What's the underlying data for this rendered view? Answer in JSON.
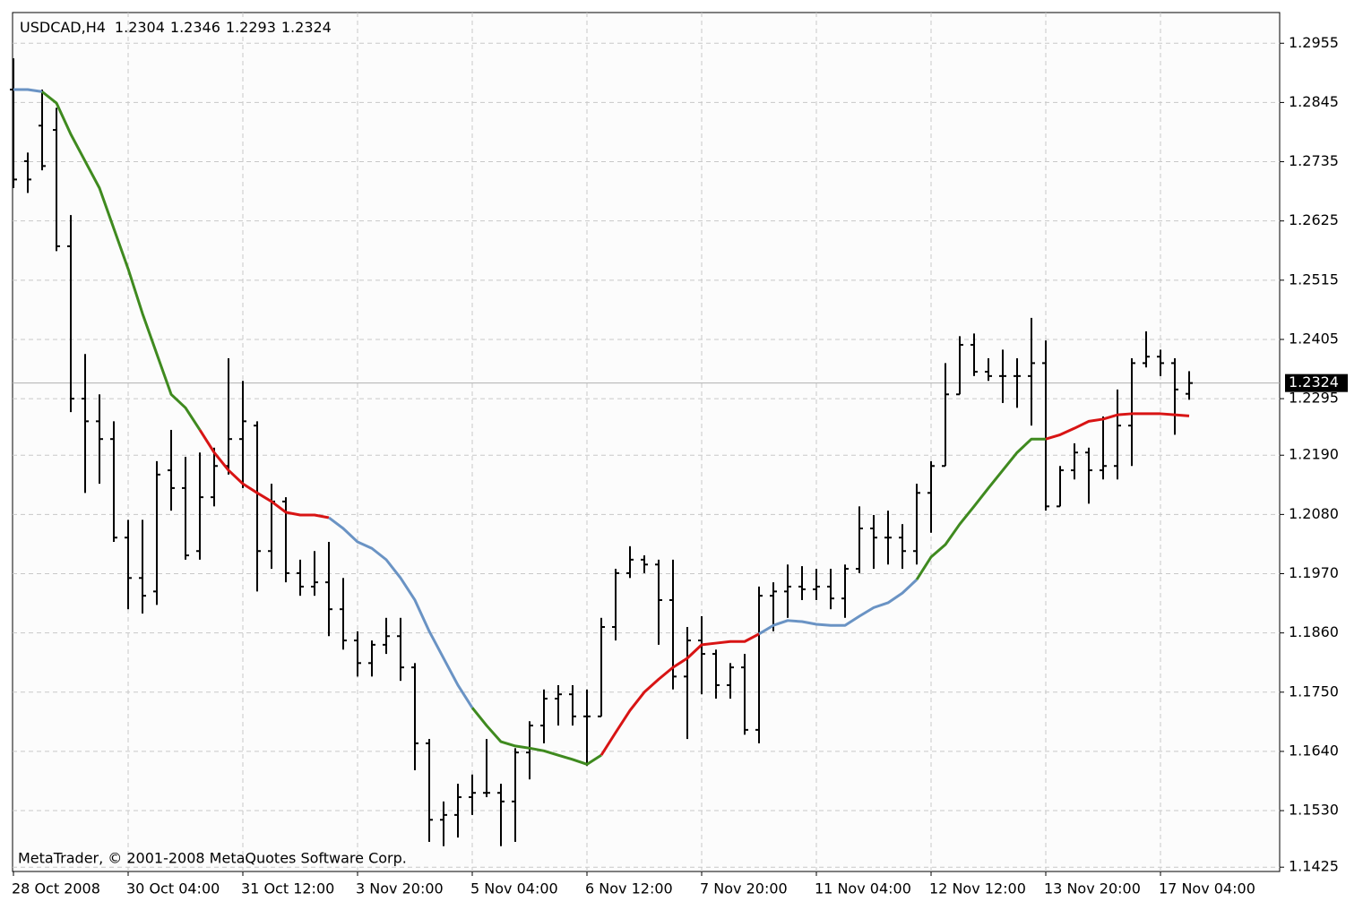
{
  "chart_data": {
    "type": "ohlc",
    "symbol": "USDCAD,H4",
    "copyright": "MetaTrader, © 2001-2008 MetaQuotes Software Corp.",
    "ylim": [
      1.1417,
      1.3012
    ],
    "yticks": [
      1.2955,
      1.2845,
      1.2735,
      1.2625,
      1.2515,
      1.2405,
      1.2295,
      {
        "value": 1.219,
        "label": "1.2190"
      },
      {
        "value": 1.208,
        "label": "1.2080"
      },
      {
        "value": 1.197,
        "label": "1.1970"
      },
      {
        "value": 1.186,
        "label": "1.1860"
      },
      {
        "value": 1.175,
        "label": "1.1750"
      },
      {
        "value": 1.164,
        "label": "1.1640"
      },
      {
        "value": 1.153,
        "label": "1.1530"
      },
      1.1425
    ],
    "grid": true,
    "bar_color": "#000000",
    "categories": [
      "28 Oct 2008",
      null,
      null,
      null,
      null,
      null,
      null,
      null,
      "30 Oct 04:00",
      null,
      null,
      null,
      null,
      null,
      null,
      null,
      "31 Oct 12:00",
      null,
      null,
      null,
      null,
      null,
      null,
      null,
      "3 Nov 20:00",
      null,
      null,
      null,
      null,
      null,
      null,
      null,
      "5 Nov 04:00",
      null,
      null,
      null,
      null,
      null,
      null,
      null,
      "6 Nov 12:00",
      null,
      null,
      null,
      null,
      null,
      null,
      null,
      "7 Nov 20:00",
      null,
      null,
      null,
      null,
      null,
      null,
      null,
      "11 Nov 04:00",
      null,
      null,
      null,
      null,
      null,
      null,
      null,
      "12 Nov 12:00",
      null,
      null,
      null,
      null,
      null,
      null,
      null,
      "13 Nov 20:00",
      null,
      null,
      null,
      null,
      null,
      null,
      null,
      "17 Nov 04:00",
      null,
      null
    ],
    "bars": [
      [
        1.2869,
        1.2927,
        1.2686,
        1.2702
      ],
      [
        1.2736,
        1.2752,
        1.2677,
        1.2702
      ],
      [
        1.2802,
        1.2869,
        1.2719,
        1.2727
      ],
      [
        1.2794,
        1.2835,
        1.2569,
        1.2578
      ],
      [
        1.2578,
        1.2636,
        1.227,
        1.2295
      ],
      [
        1.2295,
        1.2378,
        1.212,
        1.2253
      ],
      [
        1.2253,
        1.2303,
        1.2137,
        1.222
      ],
      [
        1.222,
        1.2253,
        1.2029,
        1.2037
      ],
      [
        1.2037,
        1.207,
        1.1904,
        1.1962
      ],
      [
        1.1962,
        1.207,
        1.1896,
        1.1929
      ],
      [
        1.1937,
        1.2179,
        1.1912,
        1.2154
      ],
      [
        1.2162,
        1.2237,
        1.2087,
        1.2129
      ],
      [
        1.2129,
        1.2187,
        1.1996,
        1.2004
      ],
      [
        1.2012,
        1.2195,
        1.1996,
        1.2112
      ],
      [
        1.2112,
        1.2204,
        1.2095,
        1.217
      ],
      [
        1.217,
        1.237,
        1.2154,
        1.222
      ],
      [
        1.222,
        1.2328,
        1.2129,
        1.2253
      ],
      [
        1.2245,
        1.2253,
        1.1937,
        1.2012
      ],
      [
        1.2012,
        1.2137,
        1.1979,
        1.2104
      ],
      [
        1.2104,
        1.2112,
        1.1954,
        1.1971
      ],
      [
        1.1971,
        1.1996,
        1.1929,
        1.1946
      ],
      [
        1.1946,
        1.2012,
        1.1929,
        1.1954
      ],
      [
        1.1954,
        1.2029,
        1.1854,
        1.1904
      ],
      [
        1.1904,
        1.1962,
        1.1829,
        1.1846
      ],
      [
        1.1846,
        1.1863,
        1.1779,
        1.1804
      ],
      [
        1.1804,
        1.1846,
        1.1779,
        1.1838
      ],
      [
        1.1838,
        1.1888,
        1.1821,
        1.1854
      ],
      [
        1.1854,
        1.1888,
        1.1771,
        1.1796
      ],
      [
        1.1796,
        1.1804,
        1.1605,
        1.1655
      ],
      [
        1.1655,
        1.1663,
        1.1472,
        1.1513
      ],
      [
        1.1513,
        1.1547,
        1.1464,
        1.1522
      ],
      [
        1.1522,
        1.158,
        1.148,
        1.1555
      ],
      [
        1.1555,
        1.1597,
        1.1522,
        1.1563
      ],
      [
        1.1563,
        1.1663,
        1.1555,
        1.1563
      ],
      [
        1.1563,
        1.158,
        1.1464,
        1.1547
      ],
      [
        1.1547,
        1.1646,
        1.1472,
        1.1638
      ],
      [
        1.1638,
        1.1696,
        1.1588,
        1.1688
      ],
      [
        1.1688,
        1.1755,
        1.1655,
        1.1738
      ],
      [
        1.1738,
        1.1763,
        1.1688,
        1.1746
      ],
      [
        1.1746,
        1.1763,
        1.1688,
        1.1705
      ],
      [
        1.1705,
        1.1755,
        1.1613,
        1.1705
      ],
      [
        1.1705,
        1.1888,
        1.1705,
        1.1871
      ],
      [
        1.1871,
        1.1979,
        1.1846,
        1.1971
      ],
      [
        1.1971,
        1.2021,
        1.1962,
        1.1996
      ],
      [
        1.1996,
        1.2004,
        1.1971,
        1.1987
      ],
      [
        1.1987,
        1.1996,
        1.1838,
        1.1921
      ],
      [
        1.1921,
        1.1996,
        1.1755,
        1.1779
      ],
      [
        1.1779,
        1.1871,
        1.1663,
        1.1846
      ],
      [
        1.1846,
        1.1891,
        1.1746,
        1.1821
      ],
      [
        1.1821,
        1.1829,
        1.1738,
        1.1763
      ],
      [
        1.1763,
        1.1804,
        1.1738,
        1.1796
      ],
      [
        1.1796,
        1.1821,
        1.1671,
        1.168
      ],
      [
        1.168,
        1.1946,
        1.1655,
        1.1929
      ],
      [
        1.1929,
        1.1954,
        1.1863,
        1.1937
      ],
      [
        1.1937,
        1.1987,
        1.1888,
        1.1946
      ],
      [
        1.1946,
        1.1984,
        1.1921,
        1.1941
      ],
      [
        1.1941,
        1.1979,
        1.1921,
        1.1946
      ],
      [
        1.1946,
        1.1979,
        1.1904,
        1.1924
      ],
      [
        1.1924,
        1.1987,
        1.1888,
        1.1979
      ],
      [
        1.1979,
        1.2095,
        1.1971,
        1.2054
      ],
      [
        1.2054,
        1.2079,
        1.1979,
        1.2037
      ],
      [
        1.2037,
        1.2087,
        1.1987,
        1.2037
      ],
      [
        1.2037,
        1.2062,
        1.1979,
        1.2012
      ],
      [
        1.2012,
        1.2137,
        1.1987,
        1.212
      ],
      [
        1.212,
        1.2179,
        1.2046,
        1.217
      ],
      [
        1.217,
        1.2361,
        1.217,
        1.2303
      ],
      [
        1.2303,
        1.2411,
        1.2303,
        1.2395
      ],
      [
        1.2395,
        1.2416,
        1.2337,
        1.2345
      ],
      [
        1.2345,
        1.237,
        1.2328,
        1.2337
      ],
      [
        1.2337,
        1.2386,
        1.2287,
        1.2337
      ],
      [
        1.2337,
        1.237,
        1.2278,
        1.2337
      ],
      [
        1.2337,
        1.2445,
        1.2245,
        1.2361
      ],
      [
        1.2361,
        1.2403,
        1.2087,
        1.2095
      ],
      [
        1.2095,
        1.217,
        1.2095,
        1.2162
      ],
      [
        1.2162,
        1.2212,
        1.2145,
        1.2195
      ],
      [
        1.2195,
        1.2204,
        1.21,
        1.2162
      ],
      [
        1.2162,
        1.2262,
        1.2145,
        1.217
      ],
      [
        1.217,
        1.2312,
        1.2145,
        1.2245
      ],
      [
        1.2245,
        1.237,
        1.217,
        1.2361
      ],
      [
        1.2361,
        1.242,
        1.2353,
        1.2373
      ],
      [
        1.2373,
        1.2386,
        1.2337,
        1.2361
      ],
      [
        1.2361,
        1.237,
        1.2228,
        1.2312
      ],
      [
        1.2304,
        1.2346,
        1.2293,
        1.2324
      ]
    ],
    "ma_values": [
      1.2869,
      1.2869,
      1.2865,
      1.2844,
      1.2786,
      1.2736,
      1.2686,
      1.2611,
      1.2536,
      1.2453,
      1.2378,
      1.2303,
      1.2278,
      1.2237,
      1.2195,
      1.2162,
      1.2137,
      1.212,
      1.2104,
      1.2084,
      1.2079,
      1.2079,
      1.2074,
      1.2054,
      1.2029,
      1.2017,
      1.1996,
      1.1962,
      1.1921,
      1.1863,
      1.1813,
      1.1763,
      1.1721,
      1.1688,
      1.1658,
      1.165,
      1.1646,
      1.1641,
      1.1633,
      1.1625,
      1.1616,
      1.1633,
      1.1675,
      1.1716,
      1.175,
      1.1774,
      1.1796,
      1.1813,
      1.1838,
      1.1841,
      1.1844,
      1.1844,
      1.1858,
      1.1874,
      1.1883,
      1.1881,
      1.1876,
      1.1874,
      1.1874,
      1.1891,
      1.1907,
      1.1916,
      1.1934,
      1.1959,
      1.2001,
      1.2024,
      1.2062,
      1.2095,
      1.2129,
      1.2162,
      1.2195,
      1.222,
      1.222,
      1.2228,
      1.224,
      1.2253,
      1.2257,
      1.2265,
      1.2267,
      1.2267,
      1.2267,
      1.2265,
      1.2263
    ],
    "ma_colors": [
      "#6a93c4",
      "#6a93c4",
      "#6a93c4",
      "#3f8a1f",
      "#3f8a1f",
      "#3f8a1f",
      "#3f8a1f",
      "#3f8a1f",
      "#3f8a1f",
      "#3f8a1f",
      "#3f8a1f",
      "#3f8a1f",
      "#3f8a1f",
      "#3f8a1f",
      "#d81414",
      "#d81414",
      "#d81414",
      "#d81414",
      "#d81414",
      "#d81414",
      "#d81414",
      "#d81414",
      "#d81414",
      "#6a93c4",
      "#6a93c4",
      "#6a93c4",
      "#6a93c4",
      "#6a93c4",
      "#6a93c4",
      "#6a93c4",
      "#6a93c4",
      "#6a93c4",
      "#6a93c4",
      "#3f8a1f",
      "#3f8a1f",
      "#3f8a1f",
      "#3f8a1f",
      "#3f8a1f",
      "#3f8a1f",
      "#3f8a1f",
      "#3f8a1f",
      "#3f8a1f",
      "#d81414",
      "#d81414",
      "#d81414",
      "#d81414",
      "#d81414",
      "#d81414",
      "#d81414",
      "#d81414",
      "#d81414",
      "#d81414",
      "#d81414",
      "#6a93c4",
      "#6a93c4",
      "#6a93c4",
      "#6a93c4",
      "#6a93c4",
      "#6a93c4",
      "#6a93c4",
      "#6a93c4",
      "#6a93c4",
      "#6a93c4",
      "#6a93c4",
      "#3f8a1f",
      "#3f8a1f",
      "#3f8a1f",
      "#3f8a1f",
      "#3f8a1f",
      "#3f8a1f",
      "#3f8a1f",
      "#3f8a1f",
      "#3f8a1f",
      "#d81414",
      "#d81414",
      "#d81414",
      "#d81414",
      "#d81414",
      "#d81414",
      "#d81414",
      "#d81414",
      "#d81414",
      "#d81414"
    ]
  }
}
